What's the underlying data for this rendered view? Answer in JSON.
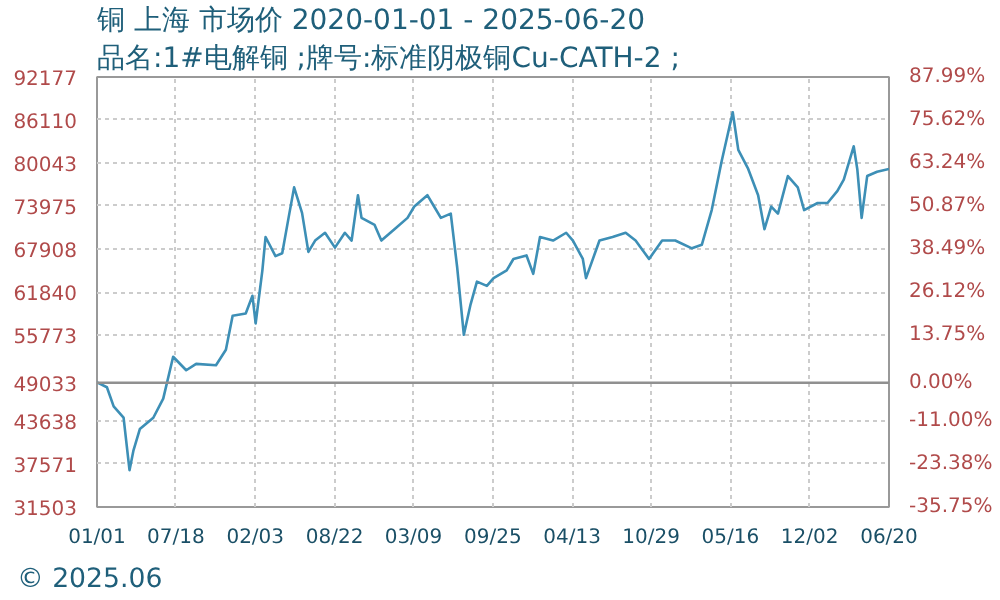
{
  "chart_data": {
    "type": "line",
    "title": "铜 上海 市场价 2020-01-01 - 2025-06-20",
    "subtitle": "品名:1#电解铜 ;牌号:标准阴极铜Cu-CATH-2 ;",
    "annotations": [
      "© 2025.06"
    ],
    "x": [
      "2020-01-01",
      "2020-01-26",
      "2020-02-12",
      "2020-03-08",
      "2020-03-23",
      "2020-04-02",
      "2020-04-18",
      "2020-05-22",
      "2020-06-16",
      "2020-07-11",
      "2020-08-13",
      "2020-09-07",
      "2020-10-27",
      "2020-11-21",
      "2020-12-08",
      "2021-01-10",
      "2021-01-27",
      "2021-02-04",
      "2021-02-21",
      "2021-03-01",
      "2021-03-26",
      "2021-04-12",
      "2021-04-28",
      "2021-05-12",
      "2021-06-01",
      "2021-06-17",
      "2021-07-04",
      "2021-07-29",
      "2021-08-23",
      "2021-09-17",
      "2021-10-04",
      "2021-10-20",
      "2021-10-29",
      "2021-12-01",
      "2021-12-18",
      "2022-01-20",
      "2022-02-22",
      "2022-03-11",
      "2022-04-13",
      "2022-04-30",
      "2022-05-17",
      "2022-06-11",
      "2022-06-27",
      "2022-07-14",
      "2022-07-31",
      "2022-08-16",
      "2022-09-10",
      "2022-09-27",
      "2022-10-30",
      "2022-11-16",
      "2022-12-19",
      "2023-01-05",
      "2023-01-22",
      "2023-02-24",
      "2023-03-29",
      "2023-04-15",
      "2023-05-10",
      "2023-05-18",
      "2023-06-21",
      "2023-07-24",
      "2023-08-26",
      "2023-09-20",
      "2023-10-24",
      "2023-11-26",
      "2023-12-29",
      "2024-02-09",
      "2024-03-05",
      "2024-03-30",
      "2024-04-24",
      "2024-05-22",
      "2024-06-05",
      "2024-06-30",
      "2024-07-25",
      "2024-08-10",
      "2024-08-27",
      "2024-09-13",
      "2024-10-08",
      "2024-11-02",
      "2024-11-18",
      "2024-12-22",
      "2025-01-16",
      "2025-02-10",
      "2025-02-26",
      "2025-03-23",
      "2025-04-01",
      "2025-04-12",
      "2025-04-26",
      "2025-05-21",
      "2025-06-20"
    ],
    "series": [
      {
        "color": "#3d8fb6",
        "values": [
          49100,
          48400,
          45700,
          44100,
          36700,
          39500,
          42500,
          44100,
          46800,
          52700,
          50800,
          51700,
          51500,
          53700,
          58500,
          58800,
          61300,
          57400,
          64900,
          69600,
          66900,
          67300,
          72300,
          76600,
          73000,
          67500,
          69100,
          70200,
          68100,
          70200,
          69100,
          75500,
          72300,
          71300,
          69100,
          70700,
          72300,
          73900,
          75500,
          73900,
          72300,
          72900,
          65400,
          55800,
          60100,
          63300,
          62700,
          63800,
          64900,
          66500,
          67000,
          64400,
          69600,
          69100,
          70200,
          69100,
          66500,
          63800,
          69100,
          69600,
          70200,
          69100,
          66500,
          69100,
          69100,
          68000,
          68500,
          73400,
          80300,
          87200,
          81900,
          79200,
          75500,
          70700,
          73900,
          72900,
          78200,
          76600,
          73400,
          74400,
          74400,
          76100,
          77700,
          82400,
          79200,
          72300,
          78200,
          78800,
          79200
        ]
      }
    ],
    "xlim": [
      "2020-01-01",
      "2025-06-20"
    ],
    "xticks": [
      {
        "value": "2020-01-01",
        "label": "01/01"
      },
      {
        "value": "2020-07-18",
        "label": "07/18"
      },
      {
        "value": "2021-02-03",
        "label": "02/03"
      },
      {
        "value": "2021-08-22",
        "label": "08/22"
      },
      {
        "value": "2022-03-09",
        "label": "03/09"
      },
      {
        "value": "2022-09-25",
        "label": "09/25"
      },
      {
        "value": "2023-04-13",
        "label": "04/13"
      },
      {
        "value": "2023-10-29",
        "label": "10/29"
      },
      {
        "value": "2024-05-16",
        "label": "05/16"
      },
      {
        "value": "2024-12-02",
        "label": "12/02"
      },
      {
        "value": "2025-06-20",
        "label": "06/20"
      }
    ],
    "ylim": [
      31503,
      92177
    ],
    "yticks": [
      31503,
      37571,
      43638,
      49033,
      55773,
      61840,
      67908,
      73975,
      80043,
      86110,
      92177
    ],
    "y2lim": [
      -35.75,
      87.99
    ],
    "y2ticks": [
      {
        "value": -35.75,
        "label": "-35.75%"
      },
      {
        "value": -23.38,
        "label": "-23.38%"
      },
      {
        "value": -11.0,
        "label": "-11.00%"
      },
      {
        "value": 0,
        "label": "0.00%"
      },
      {
        "value": 13.75,
        "label": "13.75%"
      },
      {
        "value": 26.12,
        "label": "26.12%"
      },
      {
        "value": 38.49,
        "label": "38.49%"
      },
      {
        "value": 50.87,
        "label": "50.87%"
      },
      {
        "value": 63.24,
        "label": "63.24%"
      },
      {
        "value": 75.62,
        "label": "75.62%"
      },
      {
        "value": 87.99,
        "label": "87.99%"
      }
    ],
    "ref_lines": [
      {
        "axis": "y",
        "value": 49033,
        "color": "#909090"
      }
    ],
    "grid": true,
    "line_style": "solid"
  }
}
